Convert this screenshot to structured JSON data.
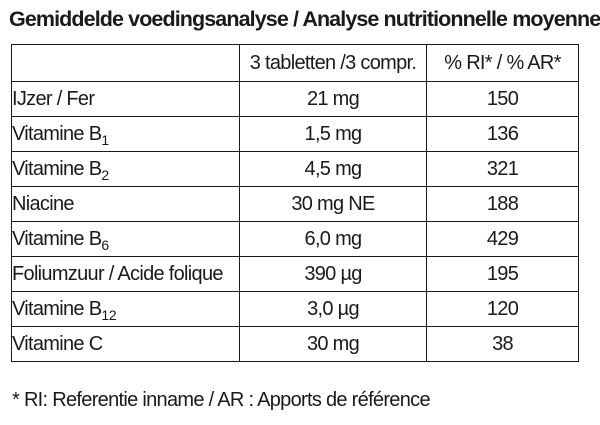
{
  "title": "Gemiddelde voedingsanalyse / Analyse nutritionnelle moyenne :",
  "table": {
    "headers": {
      "nutrient": "",
      "amount": "3 tabletten /3 compr.",
      "ri": "% RI* / % AR*"
    },
    "rows": [
      {
        "name": "IJzer / Fer",
        "sub": "",
        "amount": "21 mg",
        "ri": "150"
      },
      {
        "name": "Vitamine B",
        "sub": "1",
        "amount": "1,5 mg",
        "ri": "136"
      },
      {
        "name": "Vitamine B",
        "sub": "2",
        "amount": "4,5 mg",
        "ri": "321"
      },
      {
        "name": "Niacine",
        "sub": "",
        "amount": "30 mg NE",
        "ri": "188"
      },
      {
        "name": "Vitamine B",
        "sub": "6",
        "amount": "6,0 mg",
        "ri": "429"
      },
      {
        "name": "Foliumzuur / Acide folique",
        "sub": "",
        "amount": "390 µg",
        "ri": "195"
      },
      {
        "name": "Vitamine B",
        "sub": "12",
        "amount": "3,0 µg",
        "ri": "120"
      },
      {
        "name": "Vitamine C",
        "sub": "",
        "amount": "30 mg",
        "ri": "38"
      }
    ]
  },
  "footnote": "* RI: Referentie inname / AR : Apports de référence"
}
